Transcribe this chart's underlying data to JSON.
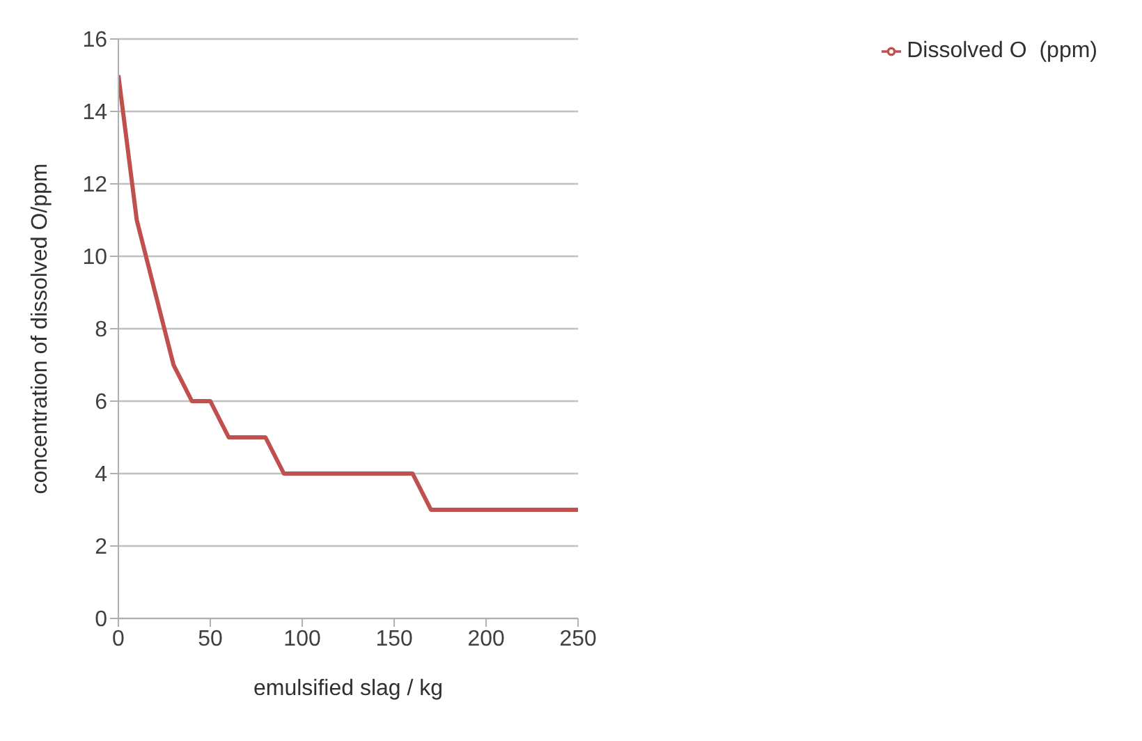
{
  "chart_data": {
    "type": "line",
    "xlabel": "emulsified slag / kg",
    "ylabel": "concentration of dissolved O/ppm",
    "x": [
      0,
      10,
      20,
      30,
      40,
      50,
      60,
      70,
      80,
      90,
      100,
      110,
      120,
      130,
      140,
      150,
      160,
      170,
      180,
      190,
      200,
      210,
      220,
      230,
      240,
      250
    ],
    "series": [
      {
        "name": "Dissolved O  (ppm)",
        "color": "#c0504d",
        "values": [
          15,
          11,
          9,
          7,
          6,
          6,
          5,
          5,
          5,
          4,
          4,
          4,
          4,
          4,
          4,
          4,
          4,
          3,
          3,
          3,
          3,
          3,
          3,
          3,
          3,
          3
        ]
      }
    ],
    "xlim": [
      0,
      250
    ],
    "xticks": [
      0,
      50,
      100,
      150,
      200,
      250
    ],
    "ylim": [
      0,
      16
    ],
    "yticks": [
      0,
      2,
      4,
      6,
      8,
      10,
      12,
      14,
      16
    ],
    "grid": "y",
    "legend": "top right",
    "marker": "none",
    "line_style": "solid"
  }
}
